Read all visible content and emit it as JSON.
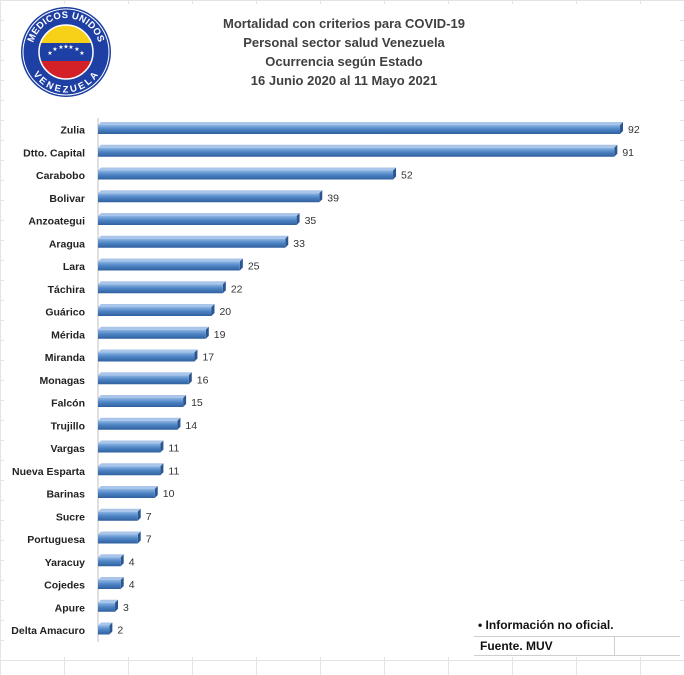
{
  "chart_data": {
    "type": "bar",
    "orientation": "horizontal",
    "title": "Mortalidad con criterios para COVID-19",
    "subtitle_lines": [
      "Personal sector salud Venezuela",
      "Ocurrencia según Estado",
      "16 Junio 2020 al 11 Mayo 2021"
    ],
    "categories": [
      "Zulia",
      "Dtto. Capital",
      "Carabobo",
      "Bolivar",
      "Anzoategui",
      "Aragua",
      "Lara",
      "Táchira",
      "Guárico",
      "Mérida",
      "Miranda",
      "Monagas",
      "Falcón",
      "Trujillo",
      "Vargas",
      "Nueva Esparta",
      "Barinas",
      "Sucre",
      "Portuguesa",
      "Yaracuy",
      "Cojedes",
      "Apure",
      "Delta Amacuro"
    ],
    "values": [
      92,
      91,
      52,
      39,
      35,
      33,
      25,
      22,
      20,
      19,
      17,
      16,
      15,
      14,
      11,
      11,
      10,
      7,
      7,
      4,
      4,
      3,
      2
    ],
    "xlim": [
      0,
      92
    ],
    "data_labels": true,
    "grid": false,
    "legend": "none",
    "bar_color": "#4f86c6"
  },
  "logo": {
    "top_text": "MEDICOS UNIDOS",
    "bottom_text": "VENEZUELA"
  },
  "notes": {
    "line1": "• Información no oficial.",
    "line2": "Fuente. MUV"
  }
}
